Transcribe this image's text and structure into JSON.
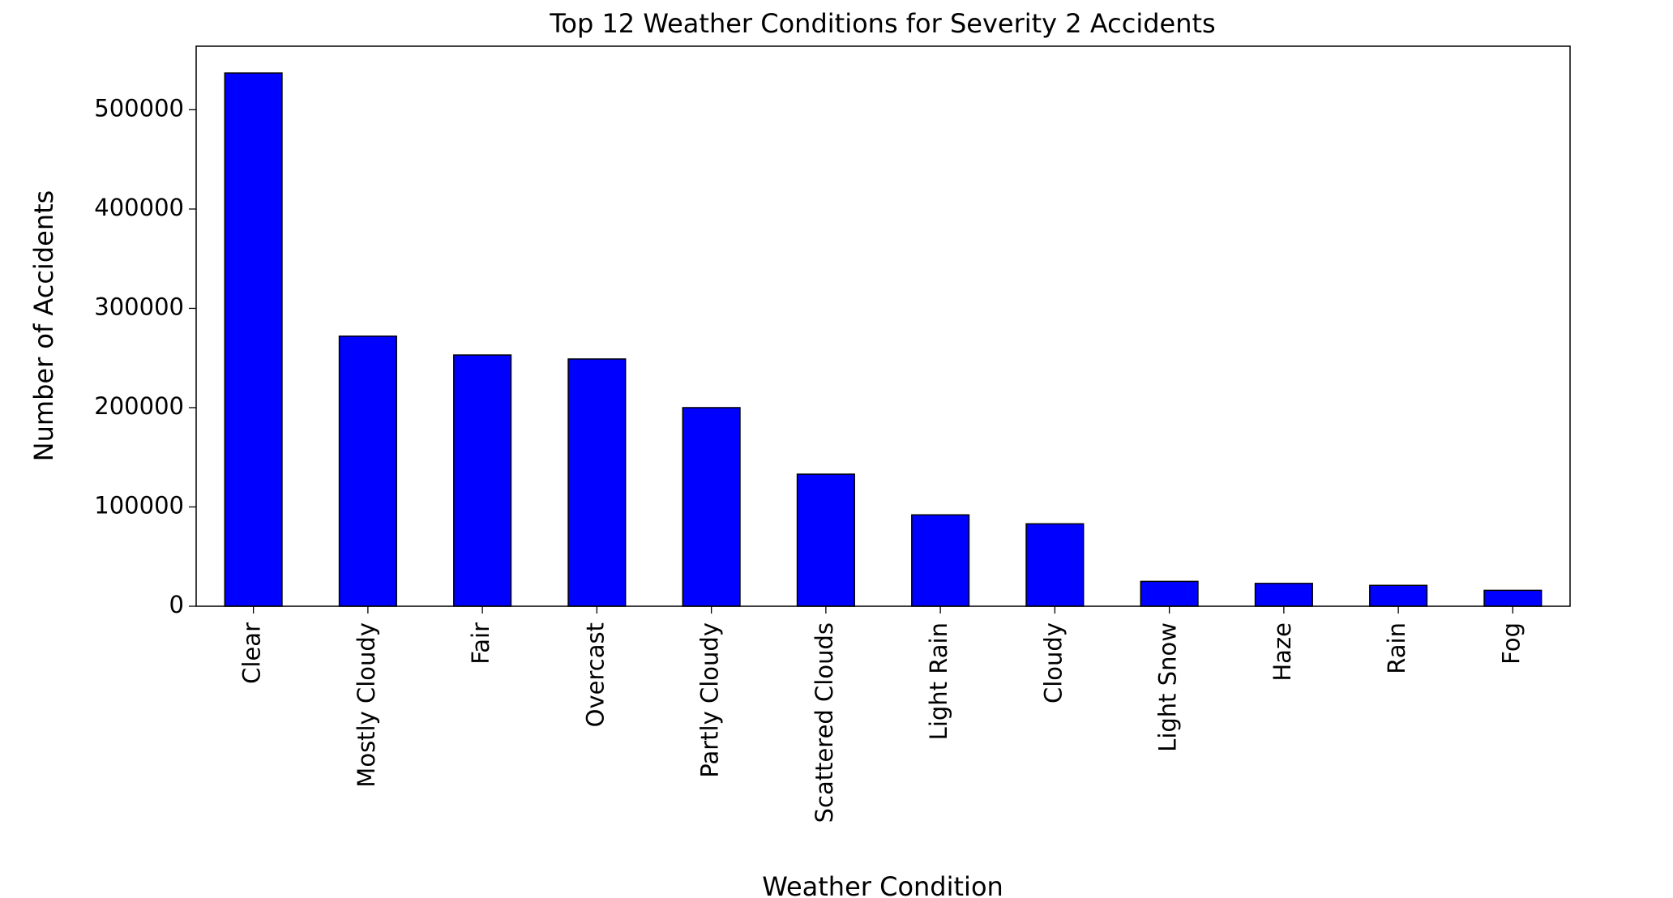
{
  "chart_data": {
    "type": "bar",
    "title": "Top 12 Weather Conditions for Severity 2 Accidents",
    "x_label": "Weather Condition",
    "y_label": "Number of Accidents",
    "categories": [
      "Clear",
      "Mostly Cloudy",
      "Fair",
      "Overcast",
      "Partly Cloudy",
      "Scattered Clouds",
      "Light Rain",
      "Cloudy",
      "Light Snow",
      "Haze",
      "Rain",
      "Fog"
    ],
    "values": [
      537000,
      272000,
      253000,
      249000,
      200000,
      133000,
      92000,
      83000,
      25000,
      23000,
      21000,
      16000
    ],
    "color": "#0000ff",
    "edge_color": "#000000",
    "ylim": [
      0,
      564000
    ],
    "yticks": [
      0,
      100000,
      200000,
      300000,
      400000,
      500000
    ],
    "grid": false
  }
}
